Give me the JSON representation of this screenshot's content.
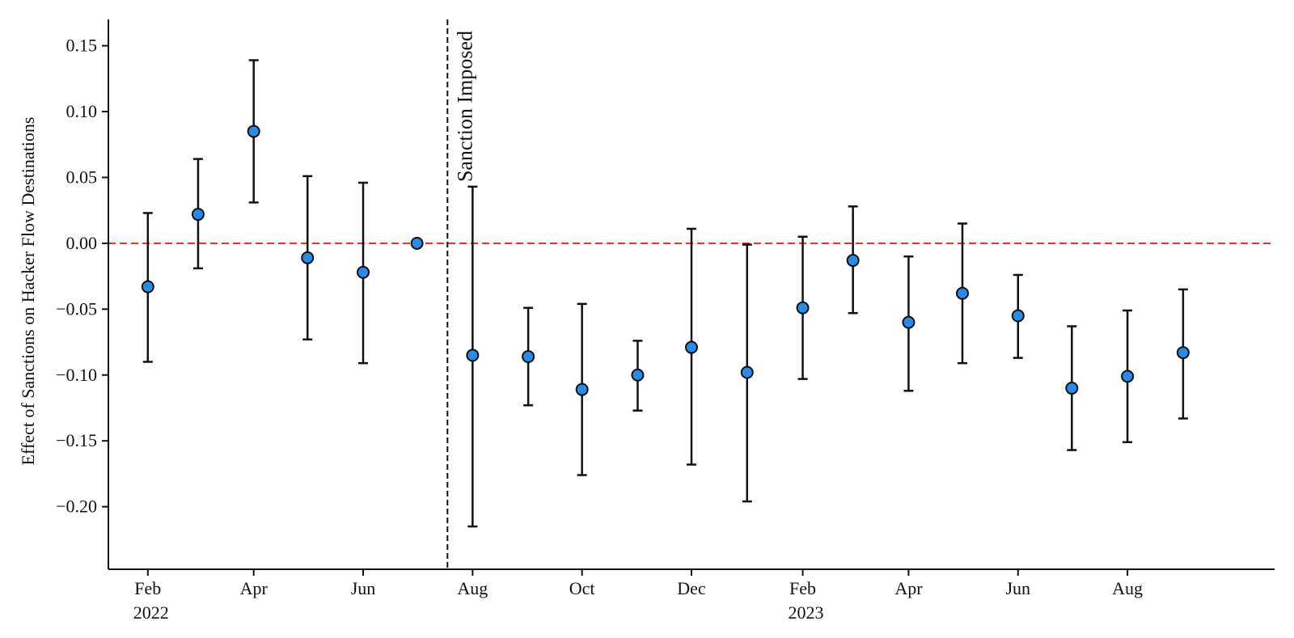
{
  "chart_data": {
    "type": "scatter",
    "title": "",
    "xlabel": "",
    "ylabel": "Effect of Sanctions on Hacker Flow Destinations",
    "ylim": [
      -0.2475,
      0.17
    ],
    "xlim": [
      "2022-01-10",
      "2023-10-22"
    ],
    "yticks": [
      0.15,
      0.1,
      0.05,
      0.0,
      -0.05,
      -0.1,
      -0.15,
      -0.2
    ],
    "ytick_labels": [
      "0.15",
      "0.10",
      "0.05",
      "0.00",
      "−0.05",
      "−0.10",
      "−0.15",
      "−0.20"
    ],
    "xticks": [
      {
        "date": "2022-02-01",
        "label": "Feb",
        "sublabel": "2022"
      },
      {
        "date": "2022-04-01",
        "label": "Apr",
        "sublabel": ""
      },
      {
        "date": "2022-06-01",
        "label": "Jun",
        "sublabel": ""
      },
      {
        "date": "2022-08-01",
        "label": "Aug",
        "sublabel": ""
      },
      {
        "date": "2022-10-01",
        "label": "Oct",
        "sublabel": ""
      },
      {
        "date": "2022-12-01",
        "label": "Dec",
        "sublabel": ""
      },
      {
        "date": "2023-02-01",
        "label": "Feb",
        "sublabel": "2023"
      },
      {
        "date": "2023-04-01",
        "label": "Apr",
        "sublabel": ""
      },
      {
        "date": "2023-06-01",
        "label": "Jun",
        "sublabel": ""
      },
      {
        "date": "2023-08-01",
        "label": "Aug",
        "sublabel": ""
      }
    ],
    "points": [
      {
        "date": "2022-02-01",
        "y": -0.033,
        "lo": -0.09,
        "hi": 0.023
      },
      {
        "date": "2022-03-01",
        "y": 0.022,
        "lo": -0.019,
        "hi": 0.064
      },
      {
        "date": "2022-04-01",
        "y": 0.085,
        "lo": 0.031,
        "hi": 0.139
      },
      {
        "date": "2022-05-01",
        "y": -0.011,
        "lo": -0.073,
        "hi": 0.051
      },
      {
        "date": "2022-06-01",
        "y": -0.022,
        "lo": -0.091,
        "hi": 0.046
      },
      {
        "date": "2022-07-01",
        "y": 0.0,
        "lo": 0.0,
        "hi": 0.0
      },
      {
        "date": "2022-08-01",
        "y": -0.085,
        "lo": -0.215,
        "hi": 0.043
      },
      {
        "date": "2022-09-01",
        "y": -0.086,
        "lo": -0.123,
        "hi": -0.049
      },
      {
        "date": "2022-10-01",
        "y": -0.111,
        "lo": -0.176,
        "hi": -0.046
      },
      {
        "date": "2022-11-01",
        "y": -0.1,
        "lo": -0.127,
        "hi": -0.074
      },
      {
        "date": "2022-12-01",
        "y": -0.079,
        "lo": -0.168,
        "hi": 0.011
      },
      {
        "date": "2023-01-01",
        "y": -0.098,
        "lo": -0.196,
        "hi": -0.001
      },
      {
        "date": "2023-02-01",
        "y": -0.049,
        "lo": -0.103,
        "hi": 0.005
      },
      {
        "date": "2023-03-01",
        "y": -0.013,
        "lo": -0.053,
        "hi": 0.028
      },
      {
        "date": "2023-04-01",
        "y": -0.06,
        "lo": -0.112,
        "hi": -0.01
      },
      {
        "date": "2023-05-01",
        "y": -0.038,
        "lo": -0.091,
        "hi": 0.015
      },
      {
        "date": "2023-06-01",
        "y": -0.055,
        "lo": -0.087,
        "hi": -0.024
      },
      {
        "date": "2023-07-01",
        "y": -0.11,
        "lo": -0.157,
        "hi": -0.063
      },
      {
        "date": "2023-08-01",
        "y": -0.101,
        "lo": -0.151,
        "hi": -0.051
      },
      {
        "date": "2023-09-01",
        "y": -0.083,
        "lo": -0.133,
        "hi": -0.035
      }
    ],
    "reference_line": {
      "y": 0.0,
      "color": "#e8262b",
      "style": "dashed"
    },
    "event_line": {
      "date": "2022-07-18",
      "label": "Sanction Imposed",
      "color": "#111111",
      "style": "dashed"
    },
    "marker_color": "#2a8ae6",
    "marker_edge_color": "#111111",
    "errorbar_color": "#111111",
    "grid": false,
    "legend": "none"
  }
}
